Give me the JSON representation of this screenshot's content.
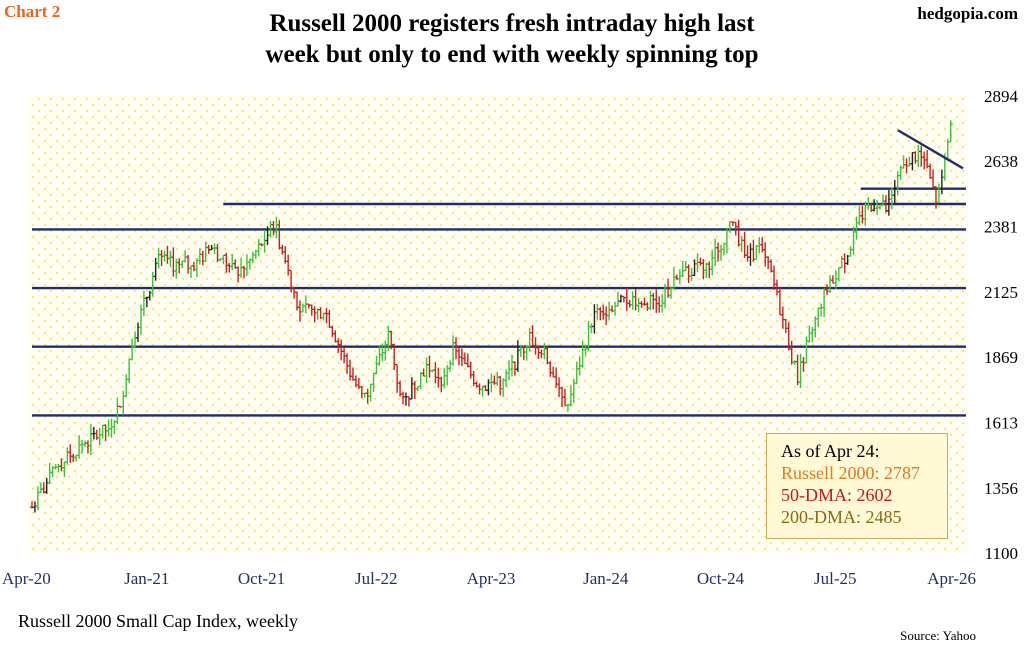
{
  "header": {
    "chart_label": "Chart 2",
    "brand": "hedgopia.com",
    "title": "Russell 2000 registers fresh intraday high last\nweek but only to end with weekly spinning top",
    "subtitle": "Russell 2000 Small Cap Index, weekly",
    "source": "Source: Yahoo"
  },
  "legend": {
    "heading": "As of Apr 24:",
    "line1": "Russell 2000: 2787",
    "line2": "50-DMA: 2602",
    "line3": "200-DMA: 2485"
  },
  "colors": {
    "background": "#fffdf2",
    "dot": "#f4ec70",
    "up_bar": "#3cc23c",
    "down_bar": "#cc2020",
    "neutral_bar": "#222222",
    "trendline": "#1f2f6e",
    "axis_text": "#1f2f6e",
    "legend_heading": "#000000",
    "legend_line1": "#e07a1f",
    "legend_line2": "#c81818",
    "legend_line3": "#8a6a14"
  },
  "chart_data": {
    "type": "ohlc",
    "title": "Russell 2000 registers fresh intraday high last week but only to end with weekly spinning top",
    "xlabel": "",
    "ylabel": "",
    "ylim": [
      1100,
      2894
    ],
    "y_ticks": [
      1100,
      1356,
      1613,
      1869,
      2125,
      2381,
      2638,
      2894
    ],
    "x_ticks": [
      "Apr-20",
      "Jan-21",
      "Oct-21",
      "Jul-22",
      "Apr-23",
      "Jan-24",
      "Oct-24",
      "Jul-25",
      "Apr-26"
    ],
    "x_range": [
      "2020-04",
      "2026-04"
    ],
    "series": [
      {
        "name": "Russell 2000 Small Cap Index, weekly",
        "anchors": [
          [
            "2020-04",
            1280
          ],
          [
            "2020-06",
            1440
          ],
          [
            "2020-08",
            1530
          ],
          [
            "2020-10",
            1590
          ],
          [
            "2020-11",
            1700
          ],
          [
            "2020-12",
            1960
          ],
          [
            "2021-01",
            2110
          ],
          [
            "2021-02",
            2260
          ],
          [
            "2021-03",
            2230
          ],
          [
            "2021-05",
            2240
          ],
          [
            "2021-06",
            2300
          ],
          [
            "2021-08",
            2200
          ],
          [
            "2021-09",
            2240
          ],
          [
            "2021-11",
            2390
          ],
          [
            "2021-12",
            2220
          ],
          [
            "2022-01",
            2050
          ],
          [
            "2022-03",
            2050
          ],
          [
            "2022-05",
            1800
          ],
          [
            "2022-06",
            1700
          ],
          [
            "2022-08",
            1960
          ],
          [
            "2022-09",
            1680
          ],
          [
            "2022-11",
            1840
          ],
          [
            "2022-12",
            1760
          ],
          [
            "2023-01",
            1900
          ],
          [
            "2023-03",
            1760
          ],
          [
            "2023-05",
            1770
          ],
          [
            "2023-07",
            1950
          ],
          [
            "2023-08",
            1900
          ],
          [
            "2023-10",
            1680
          ],
          [
            "2023-12",
            2030
          ],
          [
            "2024-03",
            2100
          ],
          [
            "2024-05",
            2080
          ],
          [
            "2024-07",
            2200
          ],
          [
            "2024-09",
            2230
          ],
          [
            "2024-11",
            2400
          ],
          [
            "2024-12",
            2250
          ],
          [
            "2025-01",
            2300
          ],
          [
            "2025-02",
            2190
          ],
          [
            "2025-04",
            1790
          ],
          [
            "2025-06",
            2100
          ],
          [
            "2025-08",
            2280
          ],
          [
            "2025-09",
            2420
          ],
          [
            "2025-10",
            2480
          ],
          [
            "2025-11",
            2450
          ],
          [
            "2025-12",
            2580
          ],
          [
            "2026-01",
            2660
          ],
          [
            "2026-02",
            2640
          ],
          [
            "2026-03",
            2470
          ],
          [
            "2026-04",
            2787
          ]
        ]
      }
    ],
    "horizontal_levels": [
      {
        "y": 1640,
        "from": "2020-04",
        "to": "2026-04"
      },
      {
        "y": 1910,
        "from": "2020-04",
        "to": "2026-04"
      },
      {
        "y": 2140,
        "from": "2020-04",
        "to": "2026-04"
      },
      {
        "y": 2370,
        "from": "2020-04",
        "to": "2026-04"
      },
      {
        "y": 2470,
        "from": "2021-07",
        "to": "2026-04"
      },
      {
        "y": 2530,
        "from": "2025-09",
        "to": "2026-04"
      }
    ],
    "trendline": {
      "from": [
        "2025-12",
        2760
      ],
      "to": [
        "2026-04",
        2610
      ]
    },
    "grid": false,
    "legend_position": "bottom-right"
  }
}
